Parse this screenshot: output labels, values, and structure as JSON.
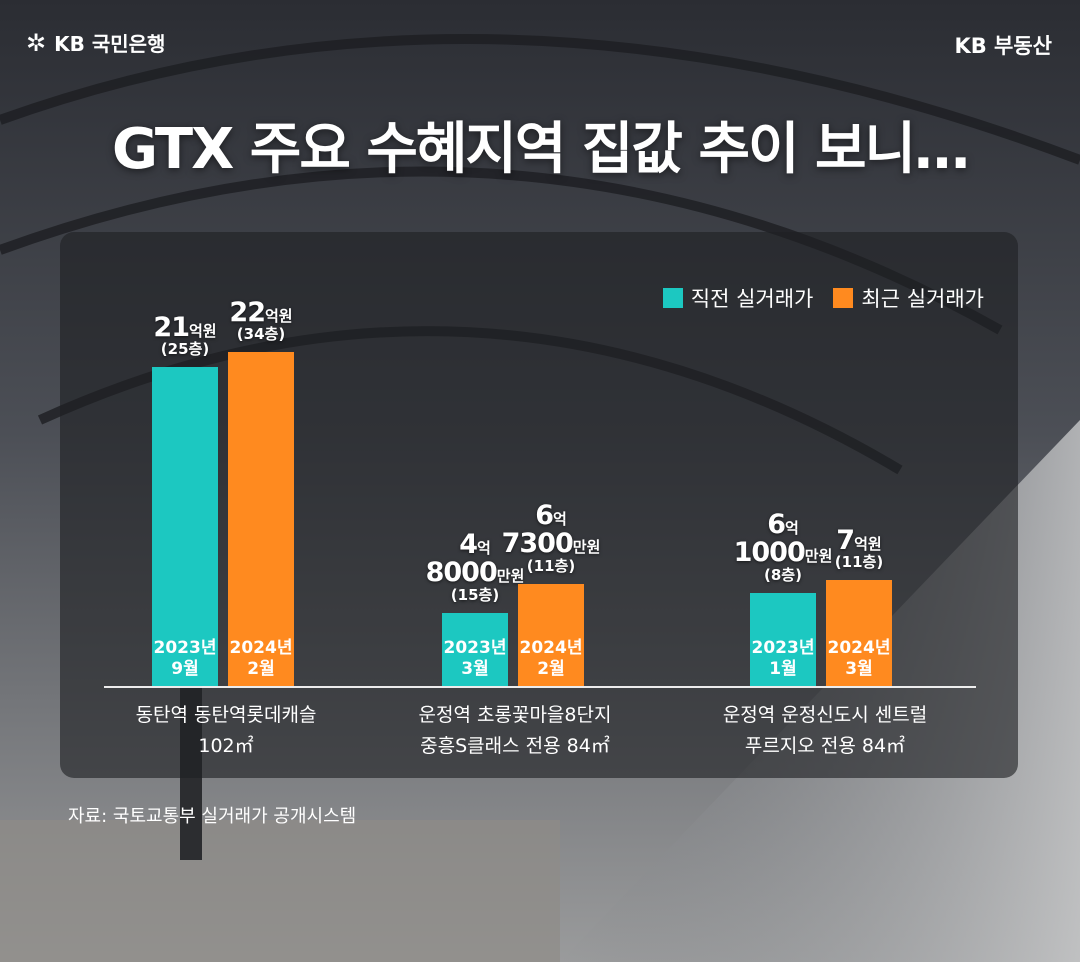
{
  "brand": {
    "left": "KB 국민은행",
    "right": "KB 부동산"
  },
  "title": "GTX 주요 수혜지역 집값 추이 보니…",
  "source": "자료: 국토교통부 실거래가 공개시스템",
  "colors": {
    "previous": "#1cc8c1",
    "recent": "#ff8a1f"
  },
  "chart_data": {
    "type": "bar",
    "title": "",
    "categories": [
      "동탄역 동탄역롯데캐슬 102㎡",
      "운정역 초롱꽃마을8단지 중흥S클래스 전용 84㎡",
      "운정역 운정신도시 센트럴 푸르지오 전용 84㎡"
    ],
    "series": [
      {
        "name": "직전 실거래가",
        "values": [
          210000,
          48000,
          61000
        ],
        "unit": "만원"
      },
      {
        "name": "최근 실거래가",
        "values": [
          220000,
          67300,
          70000
        ],
        "unit": "만원"
      }
    ],
    "ylim": [
      0,
      232000
    ],
    "legend": "top-right"
  },
  "legend": [
    "직전 실거래가",
    "최근 실거래가"
  ],
  "categories": [
    {
      "line1": "동탄역 동탄역롯데캐슬",
      "line2": "102㎡"
    },
    {
      "line1": "운정역 초롱꽃마을8단지",
      "line2": "중흥S클래스 전용 84㎡"
    },
    {
      "line1": "운정역 운정신도시 센트럴",
      "line2": "푸르지오 전용 84㎡"
    }
  ],
  "bars": [
    {
      "series": 0,
      "group": 0,
      "date1": "2023년",
      "date2": "9월",
      "lbl": [
        {
          "big": "21",
          "small": "억원"
        }
      ],
      "floor": "(25층)"
    },
    {
      "series": 1,
      "group": 0,
      "date1": "2024년",
      "date2": "2월",
      "lbl": [
        {
          "big": "22",
          "small": "억원"
        }
      ],
      "floor": "(34층)"
    },
    {
      "series": 0,
      "group": 1,
      "date1": "2023년",
      "date2": "3월",
      "lbl": [
        {
          "big": "4",
          "small": "억"
        },
        {
          "big": "8000",
          "small": "만원"
        }
      ],
      "floor": "(15층)"
    },
    {
      "series": 1,
      "group": 1,
      "date1": "2024년",
      "date2": "2월",
      "lbl": [
        {
          "big": "6",
          "small": "억"
        },
        {
          "big": "7300",
          "small": "만원"
        }
      ],
      "floor": "(11층)"
    },
    {
      "series": 0,
      "group": 2,
      "date1": "2023년",
      "date2": "1월",
      "lbl": [
        {
          "big": "6",
          "small": "억"
        },
        {
          "big": "1000",
          "small": "만원"
        }
      ],
      "floor": "(8층)"
    },
    {
      "series": 1,
      "group": 2,
      "date1": "2024년",
      "date2": "3월",
      "lbl": [
        {
          "big": "7",
          "small": "억원"
        }
      ],
      "floor": "(11층)"
    }
  ]
}
